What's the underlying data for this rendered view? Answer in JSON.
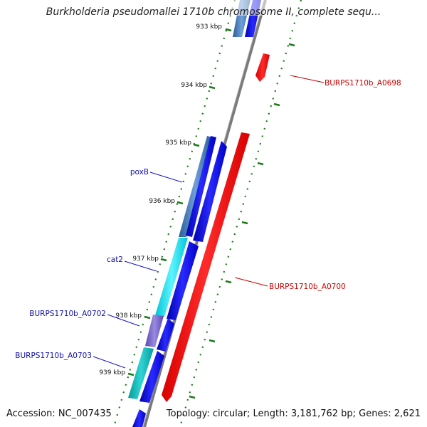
{
  "title": "Burkholderia pseudomallei 1710b chromosome II, complete sequ...",
  "footer": {
    "accession": "Accession: NC_007435",
    "topology": "Topology: circular; Length: 3,181,762 bp; Genes: 2,621"
  },
  "colors": {
    "backbone": "#808080",
    "tick": "#1a7a1a",
    "forward_gene": "#0000ee",
    "reverse_gene": "#ff0000",
    "label_forward": "#1010aa",
    "label_reverse": "#cc0000",
    "gene_steelblue": "#4a7fbf",
    "gene_cyan": "#11dddd",
    "gene_purple": "#7b68c8",
    "gene_teal": "#12b0b0"
  },
  "kbp_ticks": [
    "933 kbp",
    "934 kbp",
    "935 kbp",
    "936 kbp",
    "937 kbp",
    "938 kbp",
    "939 kbp"
  ],
  "gene_labels": {
    "burps_a0698": "BURPS1710b_A0698",
    "poxb": "poxB",
    "burps_a0700": "BURPS1710b_A0700",
    "cat2": "cat2",
    "burps_a0702": "BURPS1710b_A0702",
    "burps_a0703": "BURPS1710b_A0703"
  }
}
